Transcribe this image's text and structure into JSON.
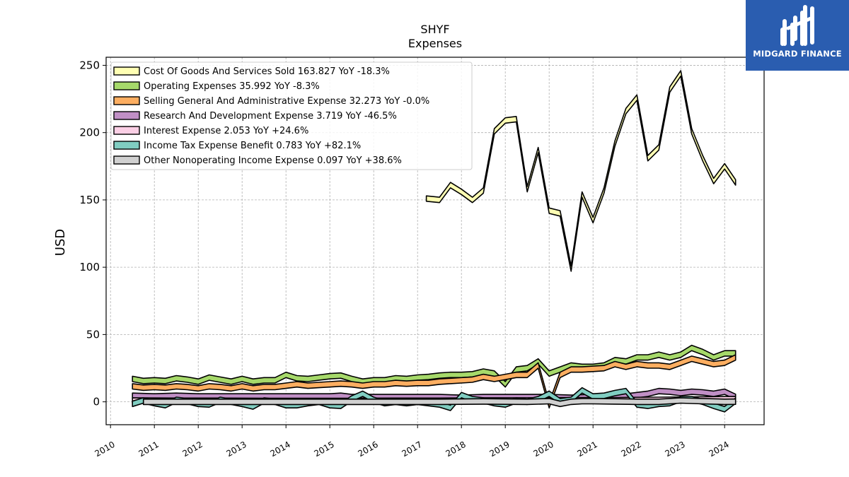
{
  "logo": {
    "text": "MIDGARD FINANCE"
  },
  "chart_data": {
    "type": "area",
    "title": "SHYF",
    "subtitle": "Expenses",
    "ylabel": "USD",
    "xlabel": "",
    "ylim": [
      -17,
      256
    ],
    "xlim": [
      2009.9,
      2024.9
    ],
    "yticks": [
      0,
      50,
      100,
      150,
      200,
      250
    ],
    "xticks": [
      2010,
      2011,
      2012,
      2013,
      2014,
      2015,
      2016,
      2017,
      2018,
      2019,
      2020,
      2021,
      2022,
      2023,
      2024
    ],
    "grid": true,
    "legend_position": "upper-left",
    "series": [
      {
        "name": "Cost Of Goods And Services Sold",
        "legend": "Cost Of Goods And Services Sold  163.827 YoY -18.3%",
        "color": "#ffffb3",
        "x": [
          2017.2,
          2017.5,
          2017.75,
          2018.0,
          2018.25,
          2018.5,
          2018.75,
          2019.0,
          2019.25,
          2019.5,
          2019.75,
          2020.0,
          2020.25,
          2020.5,
          2020.75,
          2021.0,
          2021.25,
          2021.5,
          2021.75,
          2022.0,
          2022.25,
          2022.5,
          2022.75,
          2023.0,
          2023.25,
          2023.5,
          2023.75,
          2024.0,
          2024.25
        ],
        "y": [
          151,
          150,
          161,
          156,
          150,
          157,
          201,
          209,
          210,
          158,
          187,
          142,
          140,
          99,
          154,
          135,
          157,
          192,
          216,
          226,
          181,
          189,
          232,
          244,
          201,
          181,
          164,
          175,
          163
        ]
      },
      {
        "name": "Operating Expenses",
        "legend": "Operating Expenses  35.992 YoY -8.3%",
        "color": "#a6d96a",
        "x": [
          2010.5,
          2010.75,
          2011.0,
          2011.25,
          2011.5,
          2011.75,
          2012.0,
          2012.25,
          2012.5,
          2012.75,
          2013.0,
          2013.25,
          2013.5,
          2013.75,
          2014.0,
          2014.25,
          2014.5,
          2014.75,
          2015.0,
          2015.25,
          2015.5,
          2015.75,
          2016.0,
          2016.25,
          2016.5,
          2016.75,
          2017.0,
          2017.25,
          2017.5,
          2017.75,
          2018.0,
          2018.25,
          2018.5,
          2018.75,
          2019.0,
          2019.25,
          2019.5,
          2019.75,
          2020.0,
          2020.25,
          2020.5,
          2020.75,
          2021.0,
          2021.25,
          2021.5,
          2021.75,
          2022.0,
          2022.25,
          2022.5,
          2022.75,
          2023.0,
          2023.25,
          2023.5,
          2023.75,
          2024.0,
          2024.25
        ],
        "y": [
          17,
          15.5,
          16,
          15.5,
          17.5,
          16.5,
          15,
          18,
          16.5,
          15,
          17,
          15,
          16,
          16,
          20,
          17.5,
          17,
          18,
          19,
          19.5,
          17,
          15,
          16,
          16,
          17.5,
          17,
          18,
          18.5,
          19.5,
          20,
          20,
          20.5,
          22.5,
          21,
          13,
          24,
          25,
          30,
          21,
          24,
          27,
          26,
          26,
          27,
          31,
          30,
          33,
          33,
          35,
          33,
          35,
          40,
          37,
          33,
          36,
          36
        ]
      },
      {
        "name": "Selling General And Administrative Expense",
        "legend": "Selling General And Administrative Expense  32.273 YoY -0.0%",
        "color": "#fdae61",
        "x": [
          2010.5,
          2010.75,
          2011.0,
          2011.25,
          2011.5,
          2011.75,
          2012.0,
          2012.25,
          2012.5,
          2012.75,
          2013.0,
          2013.25,
          2013.5,
          2013.75,
          2014.0,
          2014.25,
          2014.5,
          2014.75,
          2015.0,
          2015.25,
          2015.5,
          2015.75,
          2016.0,
          2016.25,
          2016.5,
          2016.75,
          2017.0,
          2017.25,
          2017.5,
          2017.75,
          2018.0,
          2018.25,
          2018.5,
          2018.75,
          2019.0,
          2019.25,
          2019.5,
          2019.75,
          2020.0,
          2020.25,
          2020.5,
          2020.75,
          2021.0,
          2021.25,
          2021.5,
          2021.75,
          2022.0,
          2022.25,
          2022.5,
          2022.75,
          2023.0,
          2023.25,
          2023.5,
          2023.75,
          2024.0,
          2024.25
        ],
        "y": [
          11.5,
          10.5,
          11,
          10.5,
          11.5,
          11,
          10,
          11.5,
          11,
          10,
          11.5,
          10,
          11,
          11,
          12,
          13,
          12,
          12.5,
          13,
          13.5,
          13,
          12,
          13,
          13,
          14,
          13.5,
          14,
          14,
          15,
          15.5,
          16,
          16.5,
          18.5,
          17,
          18.5,
          20,
          20,
          27,
          -2.5,
          20,
          24,
          24,
          24.5,
          25,
          28,
          26,
          28,
          27,
          27,
          26,
          29,
          32,
          30,
          28,
          29,
          33
        ]
      },
      {
        "name": "Research And Development Expense",
        "legend": "Research And Development Expense  3.719 YoY -46.5%",
        "color": "#c08fc5",
        "x": [
          2010.5,
          2011.0,
          2011.5,
          2012.0,
          2012.5,
          2013.0,
          2013.5,
          2014.0,
          2014.5,
          2015.0,
          2015.25,
          2015.5,
          2016.0,
          2016.5,
          2017.0,
          2017.5,
          2018.0,
          2018.5,
          2019.0,
          2019.5,
          2020.0,
          2020.5,
          2021.0,
          2021.5,
          2021.75,
          2022.0,
          2022.25,
          2022.5,
          2022.75,
          2023.0,
          2023.25,
          2023.5,
          2023.75,
          2024.0,
          2024.25
        ],
        "y": [
          4.5,
          4,
          4.5,
          4,
          4,
          4,
          4,
          4,
          4,
          4,
          4.5,
          3.5,
          3.5,
          3.5,
          3.5,
          3.5,
          3,
          3.5,
          3.5,
          3.5,
          3.5,
          3,
          3.5,
          3.5,
          4,
          5,
          6,
          8,
          7.5,
          6.5,
          7.5,
          7,
          6,
          7.5,
          3.7
        ]
      },
      {
        "name": "Interest Expense",
        "legend": "Interest Expense  2.053 YoY +24.6%",
        "color": "#fbcfe5",
        "x": [
          2010.5,
          2011.5,
          2012.5,
          2013.5,
          2014.5,
          2015.5,
          2016.5,
          2017.5,
          2018.5,
          2019.5,
          2020.5,
          2021.5,
          2022.5,
          2023.5,
          2024.25
        ],
        "y": [
          1,
          0.8,
          0.8,
          0.7,
          0.7,
          0.7,
          0.8,
          0.8,
          1,
          1,
          1.2,
          1.2,
          1.5,
          1.8,
          2.05
        ]
      },
      {
        "name": "Income Tax Expense Benefit",
        "legend": "Income Tax Expense Benefit  0.783 YoY +82.1%",
        "color": "#80cdc1",
        "x": [
          2010.5,
          2010.75,
          2011.0,
          2011.25,
          2011.5,
          2011.75,
          2012.0,
          2012.25,
          2012.5,
          2012.75,
          2013.0,
          2013.25,
          2013.5,
          2013.75,
          2014.0,
          2014.25,
          2014.5,
          2014.75,
          2015.0,
          2015.25,
          2015.5,
          2015.75,
          2016.0,
          2016.25,
          2016.5,
          2016.75,
          2017.0,
          2017.25,
          2017.5,
          2017.75,
          2018.0,
          2018.25,
          2018.5,
          2018.75,
          2019.0,
          2019.25,
          2019.5,
          2019.75,
          2020.0,
          2020.25,
          2020.5,
          2020.75,
          2021.0,
          2021.25,
          2021.5,
          2021.75,
          2022.0,
          2022.25,
          2022.5,
          2022.75,
          2023.0,
          2023.25,
          2023.5,
          2023.75,
          2024.0,
          2024.25
        ],
        "y": [
          -1.5,
          1,
          -1,
          -2.5,
          1.5,
          0.5,
          -1.5,
          -2,
          1.5,
          0,
          -1.5,
          -3.5,
          1,
          0,
          -2.5,
          -2.5,
          -1,
          0,
          -2.5,
          -3,
          2.5,
          6,
          1.5,
          -1,
          0,
          -1,
          0,
          -1,
          -2,
          -4.5,
          5,
          2,
          1,
          -1,
          -2,
          1,
          0,
          2,
          6,
          0.5,
          1.5,
          8.5,
          4,
          4.5,
          6.5,
          8,
          -2,
          -3,
          -1.5,
          -1,
          2,
          2,
          0,
          -3,
          -5.5,
          0.8
        ]
      },
      {
        "name": "Other Nonoperating Income Expense",
        "legend": "Other Nonoperating Income Expense  0.097 YoY +38.6%",
        "color": "#d0d0d0",
        "x": [
          2010.75,
          2011.5,
          2012.5,
          2013.5,
          2014.5,
          2015.5,
          2016.5,
          2017.5,
          2018.5,
          2019.5,
          2020.0,
          2020.25,
          2020.5,
          2020.75,
          2021.0,
          2021.5,
          2022.0,
          2022.5,
          2023.0,
          2023.5,
          2024.0,
          2024.25
        ],
        "y": [
          0,
          0,
          0,
          0,
          0,
          0,
          0,
          0,
          0.3,
          0,
          0.5,
          -1.5,
          0,
          0.5,
          0.5,
          0.3,
          0,
          0,
          1,
          0.5,
          0,
          0.1
        ]
      }
    ]
  }
}
